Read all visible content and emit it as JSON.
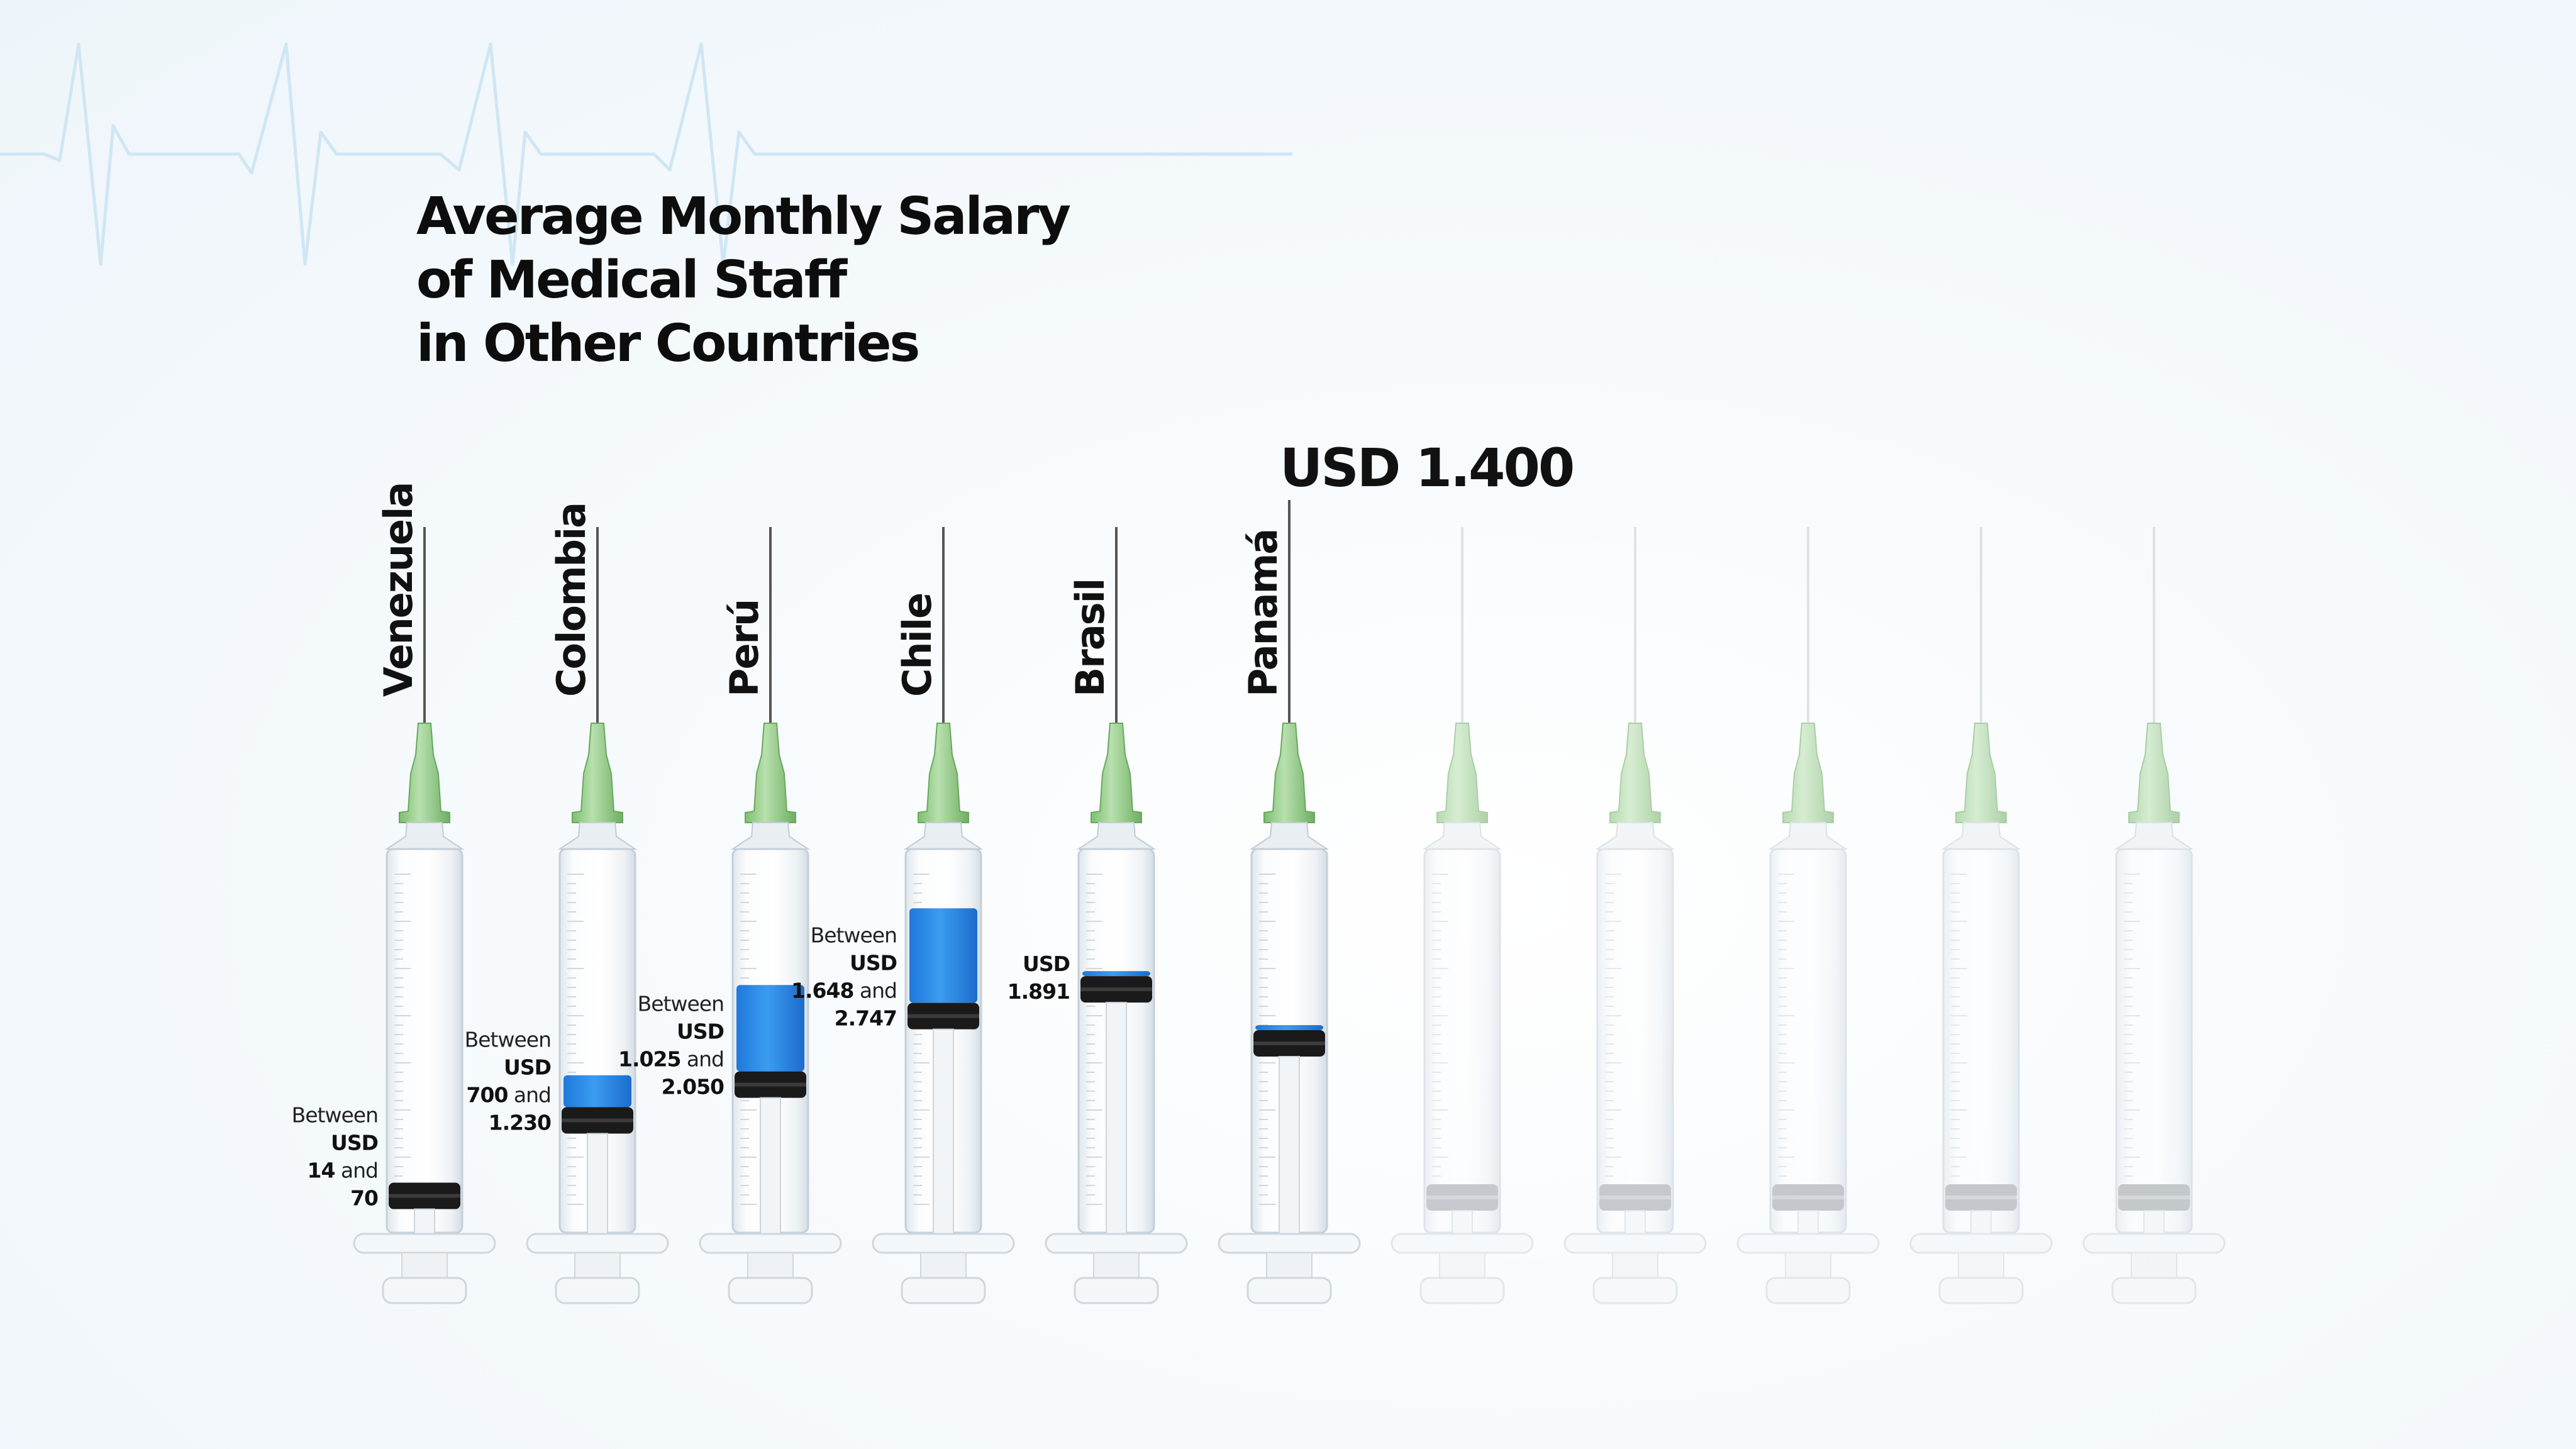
{
  "chart_data": {
    "type": "bar",
    "title": [
      "Average Monthly Salary",
      "of Medical Staff",
      "in Other Countries"
    ],
    "callout": "USD 1.400",
    "categories": [
      "Venezuela",
      "Colombia",
      "Perú",
      "Chile",
      "Brasil",
      "Panamá"
    ],
    "series": [
      {
        "ranges": [
          [
            14,
            70
          ],
          [
            700,
            1230
          ],
          [
            1025,
            2050
          ],
          [
            1648,
            2747
          ],
          [
            1891,
            1891
          ],
          [
            1400,
            1400
          ]
        ]
      }
    ],
    "labels": [
      [
        {
          "t": "Between",
          "b": false
        },
        {
          "t": "USD",
          "b": true
        },
        {
          "t": "14",
          "b": true,
          "s": " and"
        },
        {
          "t": "70",
          "b": true
        }
      ],
      [
        {
          "t": "Between",
          "b": false
        },
        {
          "t": "USD",
          "b": true
        },
        {
          "t": "700",
          "b": true,
          "s": " and"
        },
        {
          "t": "1.230",
          "b": true
        }
      ],
      [
        {
          "t": "Between",
          "b": false
        },
        {
          "t": "USD",
          "b": true
        },
        {
          "t": "1.025",
          "b": true,
          "s": " and"
        },
        {
          "t": "2.050",
          "b": true
        }
      ],
      [
        {
          "t": "Between",
          "b": false
        },
        {
          "t": "USD",
          "b": true
        },
        {
          "t": "1.648",
          "b": true,
          "s": " and"
        },
        {
          "t": "2.747",
          "b": true
        }
      ],
      [
        {
          "t": "USD",
          "b": true
        },
        {
          "t": "1.891",
          "b": true
        }
      ],
      []
    ],
    "empty_syringes": 5,
    "colors": {
      "fill": "#2b8fe6",
      "fill_dark": "#1f6fd1",
      "needle_hub": "#8fca83",
      "plunger": "#1a1a1a"
    }
  }
}
